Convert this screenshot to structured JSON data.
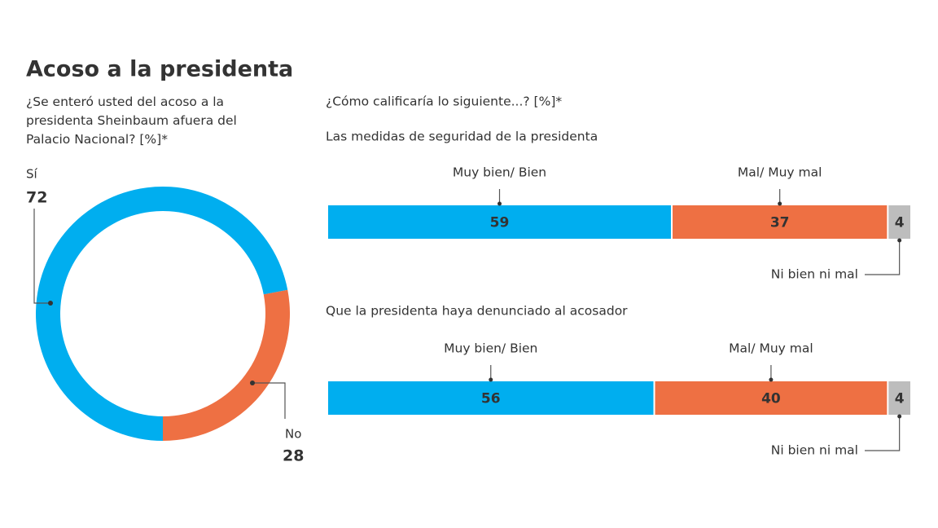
{
  "chart_data": [
    {
      "type": "pie",
      "title": "Acoso a la presidenta",
      "subtitle": "¿Se enteró usted del acoso a la presidenta Sheinbaum afuera del Palacio Nacional? [%]*",
      "categories": [
        "Sí",
        "No"
      ],
      "values": [
        72,
        28
      ],
      "colors": [
        "#00aeef",
        "#ee7043"
      ]
    },
    {
      "type": "stacked-bar",
      "subtitle": "¿Cómo calificaría lo siguiente...? [%]*",
      "title": "Las medidas de seguridad de la presidenta",
      "series": [
        {
          "name": "Muy bien/ Bien",
          "color": "#00aeef",
          "values": [
            59
          ]
        },
        {
          "name": "Mal/ Muy mal",
          "color": "#ee7043",
          "values": [
            37
          ]
        },
        {
          "name": "Ni bien ni mal",
          "color": "#bdbdbd",
          "values": [
            4
          ]
        }
      ]
    },
    {
      "type": "stacked-bar",
      "title": "Que la presidenta haya denunciado al acosador",
      "series": [
        {
          "name": "Muy bien/ Bien",
          "color": "#00aeef",
          "values": [
            56
          ]
        },
        {
          "name": "Mal/ Muy mal",
          "color": "#ee7043",
          "values": [
            40
          ]
        },
        {
          "name": "Ni bien ni mal",
          "color": "#bdbdbd",
          "values": [
            4
          ]
        }
      ]
    }
  ]
}
